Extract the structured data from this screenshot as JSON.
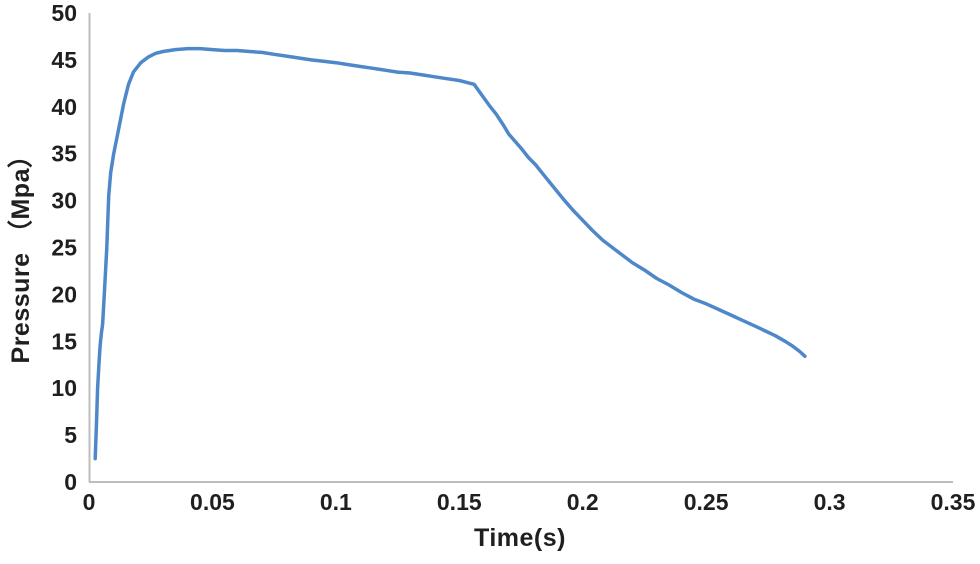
{
  "chart_data": {
    "type": "line",
    "title": "",
    "xlabel": "Time(s)",
    "ylabel": "Pressure （Mpa）",
    "xlim": [
      0,
      0.35
    ],
    "ylim": [
      0,
      50
    ],
    "grid": false,
    "legend": "none",
    "x_ticks": [
      0,
      0.05,
      0.1,
      0.15,
      0.2,
      0.25,
      0.3,
      0.35
    ],
    "x_tick_labels": [
      "0",
      "0.05",
      "0.1",
      "0.15",
      "0.2",
      "0.25",
      "0.3",
      "0.35"
    ],
    "y_ticks": [
      0,
      5,
      10,
      15,
      20,
      25,
      30,
      35,
      40,
      45,
      50
    ],
    "y_tick_labels": [
      "0",
      "5",
      "10",
      "15",
      "20",
      "25",
      "30",
      "35",
      "40",
      "45",
      "50"
    ],
    "colors": {
      "line": "#4e88c9",
      "axis": "#bdbdbd",
      "text": "#1f1f1f"
    },
    "series": [
      {
        "name": "Pressure",
        "color": "#4e88c9",
        "points": [
          [
            0.0025,
            2.5
          ],
          [
            0.003,
            6.0
          ],
          [
            0.0035,
            10.0
          ],
          [
            0.004,
            12.5
          ],
          [
            0.0045,
            14.5
          ],
          [
            0.005,
            15.8
          ],
          [
            0.0055,
            16.8
          ],
          [
            0.0062,
            20.0
          ],
          [
            0.0072,
            25.0
          ],
          [
            0.008,
            30.5
          ],
          [
            0.0088,
            33.0
          ],
          [
            0.01,
            35.0
          ],
          [
            0.012,
            37.6
          ],
          [
            0.014,
            40.3
          ],
          [
            0.016,
            42.4
          ],
          [
            0.018,
            43.7
          ],
          [
            0.021,
            44.7
          ],
          [
            0.024,
            45.3
          ],
          [
            0.027,
            45.7
          ],
          [
            0.03,
            45.9
          ],
          [
            0.035,
            46.1
          ],
          [
            0.04,
            46.2
          ],
          [
            0.045,
            46.2
          ],
          [
            0.05,
            46.1
          ],
          [
            0.055,
            46.0
          ],
          [
            0.06,
            46.0
          ],
          [
            0.065,
            45.9
          ],
          [
            0.07,
            45.8
          ],
          [
            0.075,
            45.6
          ],
          [
            0.08,
            45.4
          ],
          [
            0.085,
            45.2
          ],
          [
            0.09,
            45.0
          ],
          [
            0.095,
            44.85
          ],
          [
            0.1,
            44.7
          ],
          [
            0.105,
            44.5
          ],
          [
            0.11,
            44.3
          ],
          [
            0.115,
            44.1
          ],
          [
            0.12,
            43.9
          ],
          [
            0.125,
            43.7
          ],
          [
            0.13,
            43.6
          ],
          [
            0.135,
            43.4
          ],
          [
            0.14,
            43.2
          ],
          [
            0.145,
            43.0
          ],
          [
            0.15,
            42.8
          ],
          [
            0.153,
            42.6
          ],
          [
            0.156,
            42.4
          ],
          [
            0.159,
            41.3
          ],
          [
            0.162,
            40.2
          ],
          [
            0.165,
            39.2
          ],
          [
            0.168,
            38.0
          ],
          [
            0.17,
            37.1
          ],
          [
            0.172,
            36.5
          ],
          [
            0.175,
            35.6
          ],
          [
            0.178,
            34.6
          ],
          [
            0.181,
            33.8
          ],
          [
            0.184,
            32.8
          ],
          [
            0.188,
            31.5
          ],
          [
            0.192,
            30.2
          ],
          [
            0.196,
            29.0
          ],
          [
            0.2,
            27.9
          ],
          [
            0.204,
            26.8
          ],
          [
            0.208,
            25.8
          ],
          [
            0.212,
            25.0
          ],
          [
            0.216,
            24.2
          ],
          [
            0.22,
            23.4
          ],
          [
            0.225,
            22.6
          ],
          [
            0.23,
            21.7
          ],
          [
            0.235,
            21.0
          ],
          [
            0.24,
            20.2
          ],
          [
            0.245,
            19.5
          ],
          [
            0.25,
            19.0
          ],
          [
            0.255,
            18.4
          ],
          [
            0.26,
            17.8
          ],
          [
            0.265,
            17.2
          ],
          [
            0.27,
            16.6
          ],
          [
            0.274,
            16.1
          ],
          [
            0.278,
            15.6
          ],
          [
            0.282,
            15.0
          ],
          [
            0.285,
            14.5
          ],
          [
            0.288,
            13.9
          ],
          [
            0.29,
            13.4
          ]
        ]
      }
    ]
  }
}
